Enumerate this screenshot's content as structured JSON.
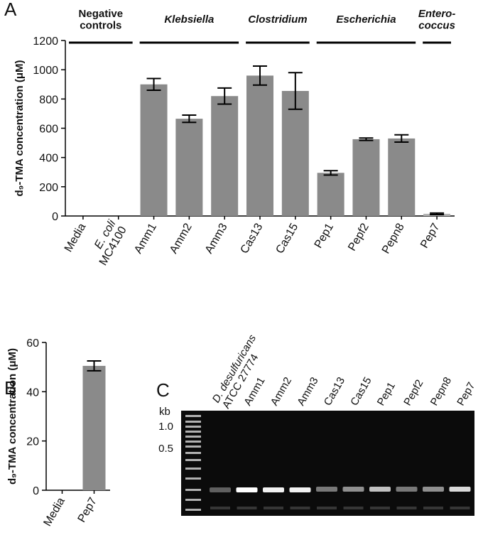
{
  "chart_data": [
    {
      "type": "bar",
      "panel_label": "A",
      "ylabel": "d₉-TMA concentration (μM)",
      "categories": [
        "Media",
        [
          "E. coli",
          "MC4100"
        ],
        "Amm1",
        "Amm2",
        "Amm3",
        "Cas13",
        "Cas15",
        "Pep1",
        "Pepf2",
        "Pepn8",
        "Pep7"
      ],
      "italic_first_line": [
        false,
        true,
        false,
        false,
        false,
        false,
        false,
        false,
        false,
        false,
        false
      ],
      "values": [
        0,
        0,
        900,
        665,
        820,
        960,
        855,
        295,
        525,
        530,
        15
      ],
      "errors": [
        0,
        0,
        40,
        25,
        55,
        65,
        125,
        15,
        8,
        25,
        5
      ],
      "colors": [
        "#8a8a8a",
        "#8a8a8a",
        "#8a8a8a",
        "#8a8a8a",
        "#8a8a8a",
        "#8a8a8a",
        "#8a8a8a",
        "#8a8a8a",
        "#8a8a8a",
        "#8a8a8a",
        "#b4b4b4"
      ],
      "groups": [
        {
          "name": [
            "Negative",
            "controls"
          ],
          "italic": false,
          "members": [
            "Media",
            [
              "E. coli",
              "MC4100"
            ]
          ]
        },
        {
          "name": "Klebsiella",
          "italic": true,
          "members": [
            "Amm1",
            "Amm2",
            "Amm3"
          ]
        },
        {
          "name": "Clostridium",
          "italic": true,
          "members": [
            "Cas13",
            "Cas15"
          ]
        },
        {
          "name": "Escherichia",
          "italic": true,
          "members": [
            "Pep1",
            "Pepf2",
            "Pepn8"
          ]
        },
        {
          "name": [
            "Entero-",
            "coccus"
          ],
          "italic": true,
          "members": [
            "Pep7"
          ]
        }
      ],
      "ylim": [
        0,
        1200
      ],
      "yticks": [
        0,
        200,
        400,
        600,
        800,
        1000,
        1200
      ]
    },
    {
      "type": "bar",
      "panel_label": "B",
      "ylabel": "d₉-TMA concentration (μM)",
      "categories": [
        "Media",
        "Pep7"
      ],
      "italic_first_line": [
        false,
        false
      ],
      "values": [
        0,
        50.5
      ],
      "errors": [
        0,
        2
      ],
      "colors": [
        "#8a8a8a",
        "#8a8a8a"
      ],
      "ylim": [
        0,
        60
      ],
      "yticks": [
        0,
        20,
        40,
        60
      ]
    }
  ],
  "gel": {
    "panel_label": "C",
    "kb_label": "kb",
    "size_labels": [
      "1.0",
      "0.5"
    ],
    "lanes": [
      [
        "D. desulfuricans",
        "ATCC 27774"
      ],
      "Amm1",
      "Amm2",
      "Amm3",
      "Cas13",
      "Cas15",
      "Pep1",
      "Pepf2",
      "Pepn8",
      "Pep7"
    ]
  }
}
